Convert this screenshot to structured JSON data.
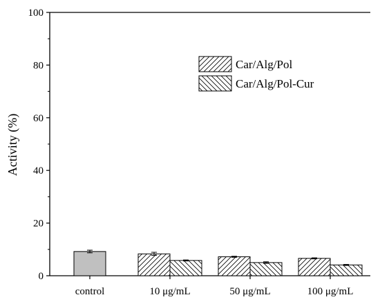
{
  "chart_data": {
    "type": "bar",
    "ylabel": "Activity (%)",
    "xlabel": "",
    "ylim": [
      0,
      100
    ],
    "yticks": [
      0,
      20,
      40,
      60,
      80,
      100
    ],
    "categories": [
      "control",
      "10 μg/mL",
      "50 μg/mL",
      "100 μg/mL"
    ],
    "control": {
      "value": 9.2,
      "error": 0.5
    },
    "series": [
      {
        "name": "Car/Alg/Pol",
        "values": [
          null,
          8.3,
          7.2,
          6.6
        ],
        "errors": [
          null,
          0.6,
          0.2,
          0.2
        ]
      },
      {
        "name": "Car/Alg/Pol-Cur",
        "values": [
          null,
          5.8,
          5.0,
          4.1
        ],
        "errors": [
          null,
          0.2,
          0.3,
          0.2
        ]
      }
    ],
    "legend_position": "top-right",
    "grid": false,
    "colors": {
      "control_fill": "#c0c0c0",
      "hatched_fill": "#ffffff",
      "stroke": "#000000"
    }
  }
}
